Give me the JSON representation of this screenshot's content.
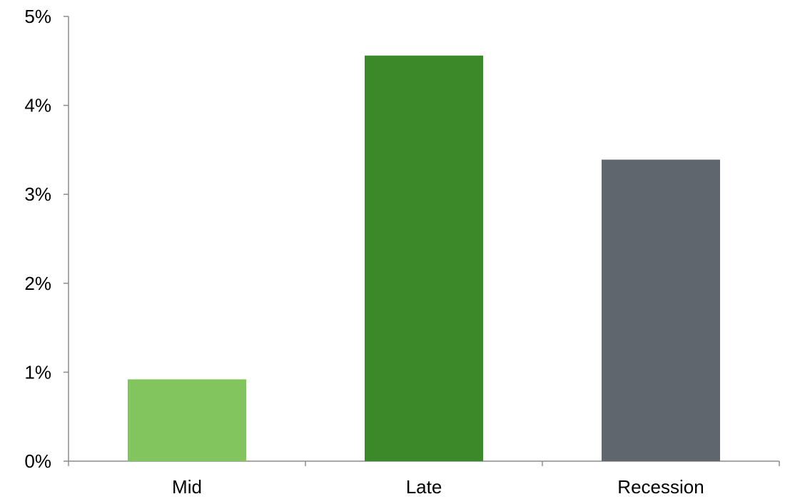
{
  "chart_data": {
    "type": "bar",
    "categories": [
      "Mid",
      "Late",
      "Recession"
    ],
    "values": [
      0.92,
      4.56,
      3.39
    ],
    "colors": [
      "#82c55f",
      "#3a8a2a",
      "#5f666e"
    ],
    "ylim": [
      0,
      5
    ],
    "yticks": [
      0,
      1,
      2,
      3,
      4,
      5
    ],
    "ytick_labels": [
      "0%",
      "1%",
      "2%",
      "3%",
      "4%",
      "5%"
    ],
    "title": "",
    "xlabel": "",
    "ylabel": "",
    "grid": false,
    "legend": "none"
  }
}
